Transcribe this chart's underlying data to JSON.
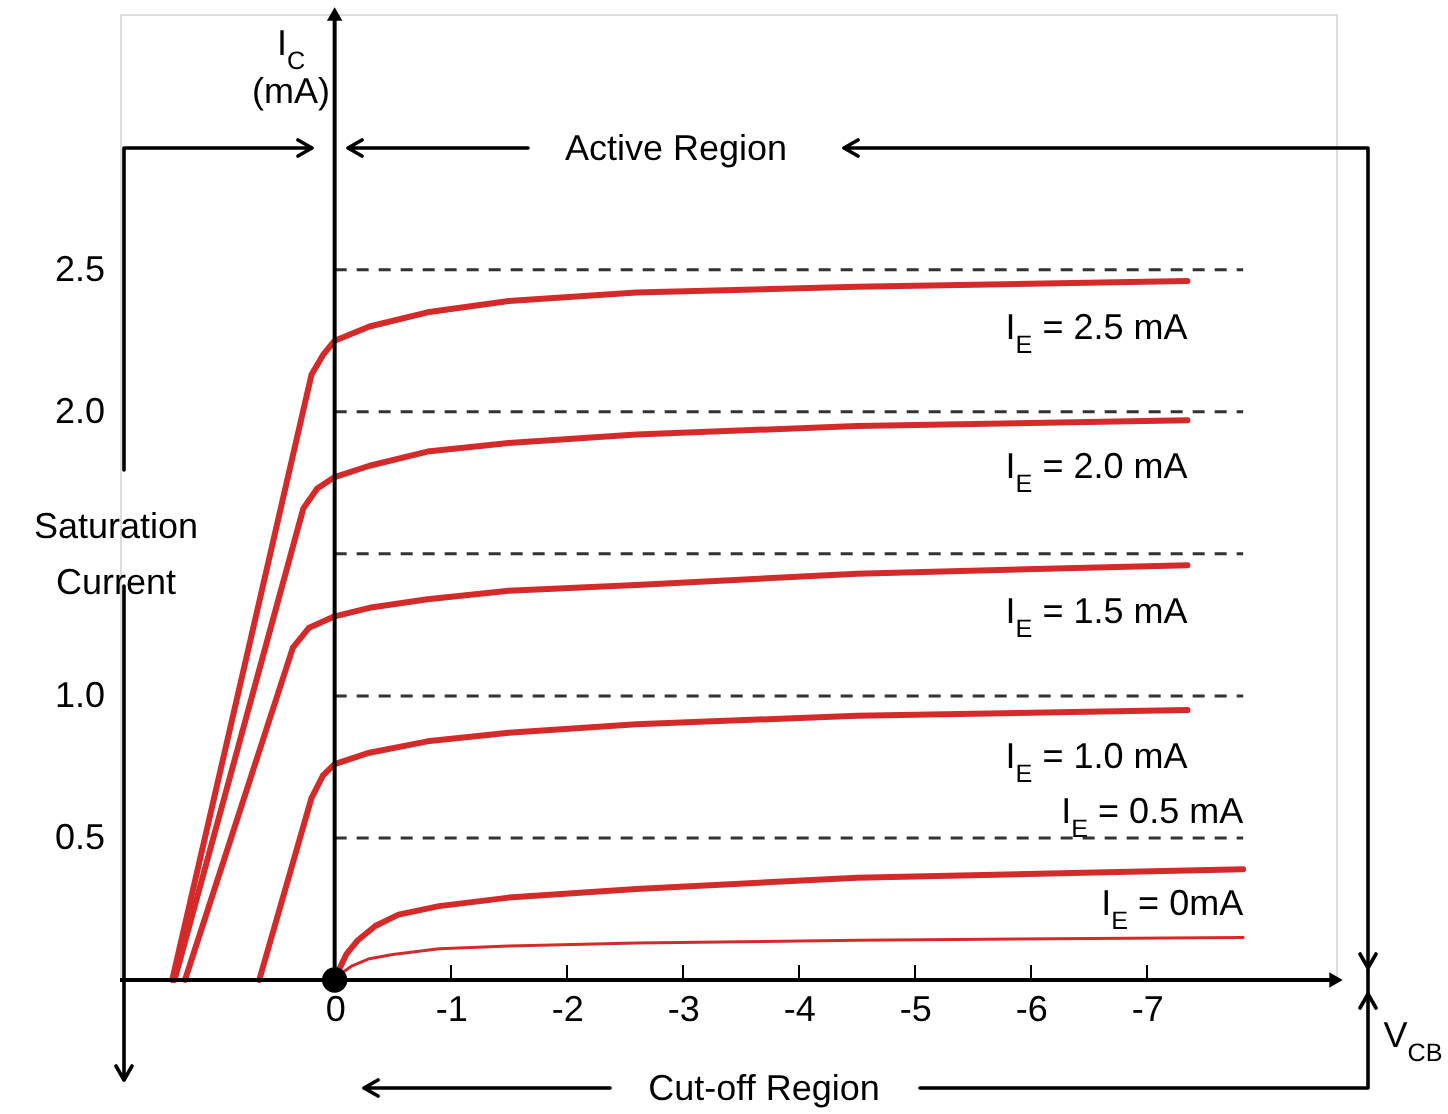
{
  "chart_data": {
    "type": "line",
    "xlabel": "V$_{CB}$",
    "ylabel": "I$_{C}$\n(mA)",
    "annotations": [
      "Active Region",
      "Saturation Current",
      "Cut-off Region"
    ],
    "xlim": [
      1.85,
      -8.63
    ],
    "ylim": [
      0,
      3.4
    ],
    "xticks": [
      0,
      -1,
      -2,
      -3,
      -4,
      -5,
      -6,
      -7
    ],
    "yticks": [
      {
        "value": 0.5,
        "label": "0.5"
      },
      {
        "value": 1.0,
        "label": "1.0"
      },
      {
        "value": 2.0,
        "label": "2.0"
      },
      {
        "value": 2.5,
        "label": "2.5"
      }
    ],
    "grid": false,
    "legend": false,
    "marker": "none",
    "line_style": "solid",
    "ref_lines": [
      {
        "axis": "y",
        "value": 2.5,
        "color": "#333333",
        "line_style": "dashed"
      },
      {
        "axis": "y",
        "value": 2.0,
        "color": "#333333",
        "line_style": "dashed"
      },
      {
        "axis": "y",
        "value": 1.5,
        "color": "#333333",
        "line_style": "dashed"
      },
      {
        "axis": "y",
        "value": 1.0,
        "color": "#333333",
        "line_style": "dashed"
      },
      {
        "axis": "y",
        "value": 0.5,
        "color": "#333333",
        "line_style": "dashed"
      }
    ],
    "series": [
      {
        "name": "I$_{E}$ = 2.5 mA",
        "color": "#d42a2a",
        "x": [
          1.4,
          0.2,
          0.1,
          0,
          -0.3,
          -0.8,
          -1.5,
          -2.6,
          -4.5,
          -7.35
        ],
        "values": [
          0,
          2.13,
          2.2,
          2.25,
          2.3,
          2.35,
          2.39,
          2.42,
          2.44,
          2.46
        ]
      },
      {
        "name": "I$_{E}$ = 2.0 mA",
        "color": "#d42a2a",
        "x": [
          1.38,
          0.27,
          0.15,
          0,
          -0.3,
          -0.8,
          -1.5,
          -2.6,
          -4.5,
          -7.35
        ],
        "values": [
          0,
          1.66,
          1.73,
          1.77,
          1.81,
          1.86,
          1.89,
          1.92,
          1.95,
          1.97
        ]
      },
      {
        "name": "I$_{E}$ = 1.5 mA",
        "color": "#d42a2a",
        "x": [
          1.29,
          0.36,
          0.22,
          0,
          -0.3,
          -0.8,
          -1.5,
          -2.6,
          -4.5,
          -7.35
        ],
        "values": [
          0,
          1.17,
          1.24,
          1.28,
          1.31,
          1.34,
          1.37,
          1.39,
          1.43,
          1.46
        ]
      },
      {
        "name": "I$_{E}$ = 1.0 mA",
        "color": "#d42a2a",
        "x": [
          0.65,
          0.2,
          0.1,
          0,
          -0.3,
          -0.8,
          -1.5,
          -2.6,
          -4.5,
          -7.35
        ],
        "values": [
          0,
          0.64,
          0.72,
          0.76,
          0.8,
          0.84,
          0.87,
          0.9,
          0.93,
          0.95
        ]
      },
      {
        "name": "I$_{E}$ = 0.5 mA",
        "color": "#d42a2a",
        "x": [
          -0.03,
          -0.1,
          -0.2,
          -0.35,
          -0.55,
          -0.9,
          -1.5,
          -2.6,
          -4.5,
          -7.83
        ],
        "values": [
          0.03,
          0.09,
          0.14,
          0.19,
          0.23,
          0.26,
          0.29,
          0.32,
          0.36,
          0.39
        ]
      },
      {
        "name": "I$_{E}$ = 0mA",
        "color": "#d42a2a",
        "x": [
          -0.03,
          -0.08,
          -0.15,
          -0.3,
          -0.5,
          -0.9,
          -1.5,
          -2.6,
          -4.5,
          -7.83
        ],
        "values": [
          0,
          0.03,
          0.05,
          0.075,
          0.09,
          0.11,
          0.12,
          0.13,
          0.14,
          0.15
        ]
      }
    ]
  }
}
